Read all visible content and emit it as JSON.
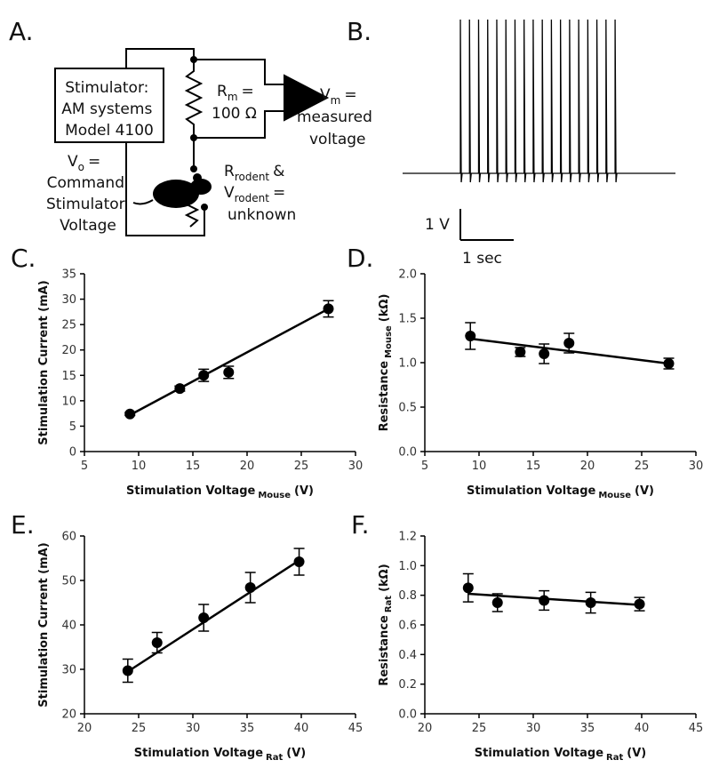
{
  "panels": {
    "a": "A.",
    "b": "B."
  },
  "circuit": {
    "stimulator": [
      "Stimulator:",
      "AM systems",
      "Model 4100"
    ],
    "rm": {
      "main": "R",
      "sub": "m",
      "rest": "=",
      "value": "100 Ω"
    },
    "vm": {
      "main": "V",
      "sub": "m",
      "rest": "=",
      "lines": [
        "measured",
        "voltage"
      ]
    },
    "vo": {
      "main": "V",
      "sub": "o",
      "rest": "=",
      "lines": [
        "Command",
        "Stimulator",
        "Voltage"
      ]
    },
    "rodent": {
      "r_main": "R",
      "r_sub": "rodent",
      "r_rest": "&",
      "v_main": "V",
      "v_sub": "rodent",
      "v_rest": "=",
      "line": "unknown"
    }
  },
  "trace": {
    "scale_v": "1 V",
    "scale_t": "1 sec"
  },
  "chart_data": [
    {
      "type": "scatter",
      "panel": "C.",
      "xlabel": {
        "main": "Stimulation Voltage",
        "sub": "Mouse",
        "unit": "(V)"
      },
      "ylabel": {
        "main": "Stimulation Current (mA)"
      },
      "x": [
        9.2,
        13.8,
        16,
        18.3,
        27.5
      ],
      "y": [
        7.4,
        12.4,
        15,
        15.6,
        28.1
      ],
      "err": [
        0.3,
        0.5,
        1.2,
        1.2,
        1.6
      ],
      "fit": {
        "x": [
          9.2,
          27.5
        ],
        "y": [
          7.2,
          28.1
        ]
      },
      "xlim": [
        5,
        30
      ],
      "xticks": [
        5,
        10,
        15,
        20,
        25,
        30
      ],
      "ylim": [
        0,
        35
      ],
      "yticks": [
        0,
        5,
        10,
        15,
        20,
        25,
        30,
        35
      ],
      "color": "#000000"
    },
    {
      "type": "scatter",
      "panel": "D.",
      "xlabel": {
        "main": "Stimulation Voltage",
        "sub": "Mouse",
        "unit": "(V)"
      },
      "ylabel": {
        "main": "Resistance",
        "sub": "Mouse",
        "unit": "(kΩ)"
      },
      "x": [
        9.2,
        13.8,
        16,
        18.3,
        27.5
      ],
      "y": [
        1.3,
        1.12,
        1.1,
        1.22,
        0.99
      ],
      "err": [
        0.15,
        0.05,
        0.11,
        0.11,
        0.06
      ],
      "fit": {
        "x": [
          9.2,
          27.5
        ],
        "y": [
          1.27,
          0.99
        ]
      },
      "xlim": [
        5,
        30
      ],
      "xticks": [
        5,
        10,
        15,
        20,
        25,
        30
      ],
      "ylim": [
        0,
        2
      ],
      "yticks": [
        {
          "value": 0,
          "label": "0.0"
        },
        0.5,
        {
          "value": 1,
          "label": "1.0"
        },
        1.5,
        {
          "value": 2,
          "label": "2.0"
        }
      ],
      "color": "#000000"
    },
    {
      "type": "scatter",
      "panel": "E.",
      "xlabel": {
        "main": "Stimulation Voltage",
        "sub": "Rat",
        "unit": "(V)"
      },
      "ylabel": {
        "main": "Stimulation Current (mA)"
      },
      "x": [
        24,
        26.7,
        31,
        35.3,
        39.8
      ],
      "y": [
        29.7,
        36,
        41.6,
        48.4,
        54.2
      ],
      "err": [
        2.6,
        2.3,
        3,
        3.4,
        3
      ],
      "fit": {
        "x": [
          24,
          39.8
        ],
        "y": [
          29.5,
          54.5
        ]
      },
      "xlim": [
        20,
        45
      ],
      "xticks": [
        20,
        25,
        30,
        35,
        40,
        45
      ],
      "ylim": [
        20,
        60
      ],
      "yticks": [
        20,
        30,
        40,
        50,
        60
      ],
      "color": "#000000"
    },
    {
      "type": "scatter",
      "panel": "F.",
      "xlabel": {
        "main": "Stimulation Voltage",
        "sub": "Rat",
        "unit": "(V)"
      },
      "ylabel": {
        "main": "Resistance",
        "sub": "Rat",
        "unit": "(kΩ)"
      },
      "x": [
        24,
        26.7,
        31,
        35.3,
        39.8
      ],
      "y": [
        0.85,
        0.75,
        0.765,
        0.75,
        0.74
      ],
      "err": [
        0.095,
        0.06,
        0.065,
        0.07,
        0.045
      ],
      "fit": {
        "x": [
          24,
          39.8
        ],
        "y": [
          0.81,
          0.735
        ]
      },
      "xlim": [
        20,
        45
      ],
      "xticks": [
        20,
        25,
        30,
        35,
        40,
        45
      ],
      "ylim": [
        0,
        1.2
      ],
      "yticks": [
        {
          "value": 0,
          "label": "0.0"
        },
        0.2,
        0.4,
        0.6,
        0.8,
        {
          "value": 1,
          "label": "1.0"
        },
        1.2
      ],
      "color": "#000000"
    }
  ]
}
